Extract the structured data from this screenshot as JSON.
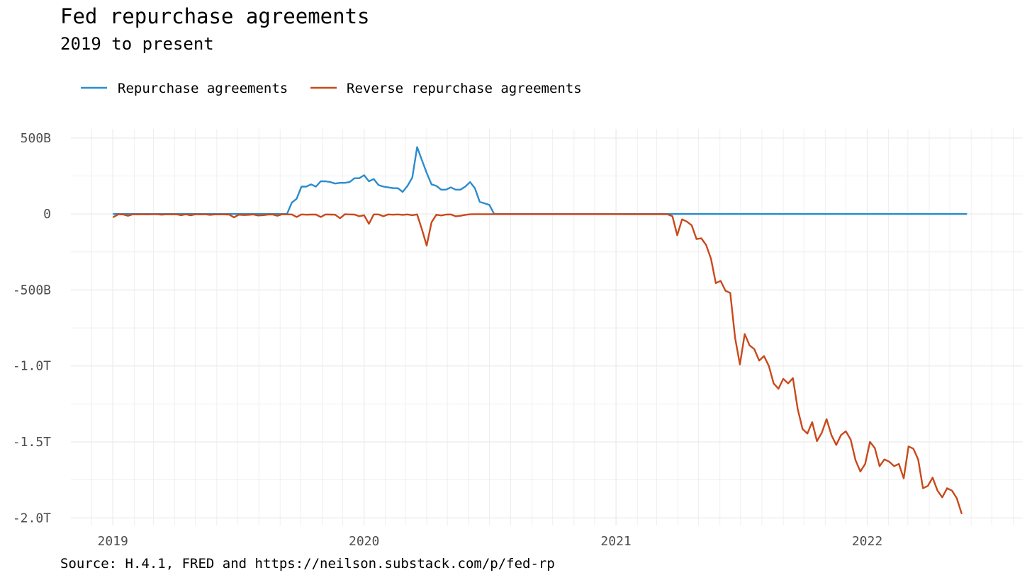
{
  "title": "Fed repurchase agreements",
  "subtitle": "2019 to present",
  "caption": "Source: H.4.1, FRED and https://neilson.substack.com/p/fed-rp",
  "colors": {
    "repurchase": "#2b8cce",
    "reverse": "#c9491b",
    "grid": "#ebebeb",
    "axis_text": "#4d4d4d"
  },
  "chart_data": {
    "type": "line",
    "x_axis": {
      "type": "date",
      "range": [
        "2018-11-01",
        "2022-08-15"
      ],
      "tick_labels": [
        "2019",
        "2020",
        "2021",
        "2022"
      ],
      "ticks": [
        "2019-01-01",
        "2020-01-01",
        "2021-01-01",
        "2022-01-01"
      ]
    },
    "y_axis": {
      "units": "USD billions",
      "range": [
        -2050,
        560
      ],
      "ticks": [
        500,
        0,
        -500,
        -1000,
        -1500,
        -2000
      ],
      "tick_labels": [
        "500B",
        "0",
        "-500B",
        "-1.0T",
        "-1.5T",
        "-2.0T"
      ]
    },
    "grid": true,
    "legend_position": "top-left",
    "series": [
      {
        "name": "Repurchase agreements",
        "color_key": "repurchase",
        "points": [
          [
            "2019-01-02",
            0
          ],
          [
            "2019-09-11",
            0
          ],
          [
            "2019-09-18",
            75
          ],
          [
            "2019-09-25",
            100
          ],
          [
            "2019-10-02",
            180
          ],
          [
            "2019-10-09",
            180
          ],
          [
            "2019-10-16",
            195
          ],
          [
            "2019-10-23",
            180
          ],
          [
            "2019-10-30",
            215
          ],
          [
            "2019-11-06",
            215
          ],
          [
            "2019-11-13",
            210
          ],
          [
            "2019-11-20",
            200
          ],
          [
            "2019-11-27",
            205
          ],
          [
            "2019-12-04",
            205
          ],
          [
            "2019-12-11",
            210
          ],
          [
            "2019-12-18",
            235
          ],
          [
            "2019-12-25",
            235
          ],
          [
            "2020-01-01",
            255
          ],
          [
            "2020-01-08",
            215
          ],
          [
            "2020-01-15",
            230
          ],
          [
            "2020-01-22",
            190
          ],
          [
            "2020-01-29",
            180
          ],
          [
            "2020-02-05",
            175
          ],
          [
            "2020-02-12",
            170
          ],
          [
            "2020-02-19",
            170
          ],
          [
            "2020-02-26",
            145
          ],
          [
            "2020-03-04",
            185
          ],
          [
            "2020-03-11",
            240
          ],
          [
            "2020-03-18",
            440
          ],
          [
            "2020-03-25",
            355
          ],
          [
            "2020-04-01",
            270
          ],
          [
            "2020-04-08",
            195
          ],
          [
            "2020-04-15",
            185
          ],
          [
            "2020-04-22",
            160
          ],
          [
            "2020-04-29",
            160
          ],
          [
            "2020-05-06",
            175
          ],
          [
            "2020-05-13",
            160
          ],
          [
            "2020-05-20",
            160
          ],
          [
            "2020-05-27",
            180
          ],
          [
            "2020-06-03",
            210
          ],
          [
            "2020-06-10",
            170
          ],
          [
            "2020-06-17",
            80
          ],
          [
            "2020-06-24",
            70
          ],
          [
            "2020-07-01",
            60
          ],
          [
            "2020-07-08",
            0
          ],
          [
            "2022-05-25",
            0
          ]
        ]
      },
      {
        "name": "Reverse repurchase agreements",
        "color_key": "reverse",
        "points": [
          [
            "2019-01-02",
            -20
          ],
          [
            "2019-01-09",
            -2
          ],
          [
            "2019-01-16",
            -3
          ],
          [
            "2019-01-23",
            -12
          ],
          [
            "2019-01-30",
            -2
          ],
          [
            "2019-02-06",
            -3
          ],
          [
            "2019-02-13",
            -2
          ],
          [
            "2019-02-20",
            -3
          ],
          [
            "2019-02-27",
            -2
          ],
          [
            "2019-03-06",
            -2
          ],
          [
            "2019-03-13",
            -5
          ],
          [
            "2019-03-20",
            -2
          ],
          [
            "2019-03-27",
            -3
          ],
          [
            "2019-04-03",
            -2
          ],
          [
            "2019-04-10",
            -8
          ],
          [
            "2019-04-17",
            -2
          ],
          [
            "2019-04-24",
            -9
          ],
          [
            "2019-05-01",
            -2
          ],
          [
            "2019-05-08",
            -3
          ],
          [
            "2019-05-15",
            -2
          ],
          [
            "2019-05-22",
            -6
          ],
          [
            "2019-05-29",
            -3
          ],
          [
            "2019-06-05",
            -3
          ],
          [
            "2019-06-12",
            -3
          ],
          [
            "2019-06-19",
            -4
          ],
          [
            "2019-06-26",
            -22
          ],
          [
            "2019-07-03",
            -5
          ],
          [
            "2019-07-10",
            -7
          ],
          [
            "2019-07-17",
            -6
          ],
          [
            "2019-07-24",
            -3
          ],
          [
            "2019-07-31",
            -10
          ],
          [
            "2019-08-07",
            -8
          ],
          [
            "2019-08-14",
            -4
          ],
          [
            "2019-08-21",
            -3
          ],
          [
            "2019-08-28",
            -12
          ],
          [
            "2019-09-04",
            -2
          ],
          [
            "2019-09-11",
            -3
          ],
          [
            "2019-09-18",
            -3
          ],
          [
            "2019-09-25",
            -20
          ],
          [
            "2019-10-02",
            -3
          ],
          [
            "2019-10-09",
            -5
          ],
          [
            "2019-10-16",
            -4
          ],
          [
            "2019-10-23",
            -4
          ],
          [
            "2019-10-30",
            -20
          ],
          [
            "2019-11-06",
            -3
          ],
          [
            "2019-11-13",
            -4
          ],
          [
            "2019-11-20",
            -5
          ],
          [
            "2019-11-27",
            -28
          ],
          [
            "2019-12-04",
            -2
          ],
          [
            "2019-12-11",
            -3
          ],
          [
            "2019-12-18",
            -4
          ],
          [
            "2019-12-25",
            -15
          ],
          [
            "2020-01-01",
            -8
          ],
          [
            "2020-01-08",
            -65
          ],
          [
            "2020-01-15",
            -3
          ],
          [
            "2020-01-22",
            -3
          ],
          [
            "2020-01-29",
            -15
          ],
          [
            "2020-02-05",
            -3
          ],
          [
            "2020-02-12",
            -5
          ],
          [
            "2020-02-19",
            -3
          ],
          [
            "2020-02-26",
            -6
          ],
          [
            "2020-03-04",
            -3
          ],
          [
            "2020-03-11",
            -8
          ],
          [
            "2020-03-18",
            -3
          ],
          [
            "2020-03-25",
            -100
          ],
          [
            "2020-04-01",
            -208
          ],
          [
            "2020-04-08",
            -55
          ],
          [
            "2020-04-15",
            -5
          ],
          [
            "2020-04-22",
            -10
          ],
          [
            "2020-04-29",
            -4
          ],
          [
            "2020-05-06",
            -3
          ],
          [
            "2020-05-13",
            -15
          ],
          [
            "2020-05-20",
            -12
          ],
          [
            "2020-05-27",
            -6
          ],
          [
            "2020-06-03",
            -2
          ],
          [
            "2020-06-10",
            -1
          ],
          [
            "2020-07-01",
            -1
          ],
          [
            "2020-12-31",
            -1
          ],
          [
            "2021-01-20",
            -2
          ],
          [
            "2021-03-10",
            -1
          ],
          [
            "2021-03-17",
            -2
          ],
          [
            "2021-03-24",
            -15
          ],
          [
            "2021-03-31",
            -140
          ],
          [
            "2021-04-07",
            -35
          ],
          [
            "2021-04-14",
            -50
          ],
          [
            "2021-04-21",
            -75
          ],
          [
            "2021-04-28",
            -165
          ],
          [
            "2021-05-05",
            -160
          ],
          [
            "2021-05-12",
            -205
          ],
          [
            "2021-05-19",
            -295
          ],
          [
            "2021-05-26",
            -455
          ],
          [
            "2021-06-02",
            -440
          ],
          [
            "2021-06-09",
            -505
          ],
          [
            "2021-06-16",
            -520
          ],
          [
            "2021-06-23",
            -815
          ],
          [
            "2021-06-30",
            -990
          ],
          [
            "2021-07-07",
            -790
          ],
          [
            "2021-07-14",
            -865
          ],
          [
            "2021-07-21",
            -890
          ],
          [
            "2021-07-28",
            -965
          ],
          [
            "2021-08-04",
            -935
          ],
          [
            "2021-08-11",
            -1000
          ],
          [
            "2021-08-18",
            -1115
          ],
          [
            "2021-08-25",
            -1150
          ],
          [
            "2021-09-01",
            -1085
          ],
          [
            "2021-09-08",
            -1115
          ],
          [
            "2021-09-15",
            -1080
          ],
          [
            "2021-09-22",
            -1285
          ],
          [
            "2021-09-29",
            -1415
          ],
          [
            "2021-10-06",
            -1445
          ],
          [
            "2021-10-13",
            -1370
          ],
          [
            "2021-10-20",
            -1495
          ],
          [
            "2021-10-27",
            -1440
          ],
          [
            "2021-11-03",
            -1350
          ],
          [
            "2021-11-10",
            -1455
          ],
          [
            "2021-11-17",
            -1520
          ],
          [
            "2021-11-24",
            -1455
          ],
          [
            "2021-12-01",
            -1430
          ],
          [
            "2021-12-08",
            -1485
          ],
          [
            "2021-12-15",
            -1620
          ],
          [
            "2021-12-22",
            -1695
          ],
          [
            "2021-12-29",
            -1645
          ],
          [
            "2022-01-05",
            -1500
          ],
          [
            "2022-01-12",
            -1540
          ],
          [
            "2022-01-19",
            -1660
          ],
          [
            "2022-01-26",
            -1615
          ],
          [
            "2022-02-02",
            -1630
          ],
          [
            "2022-02-09",
            -1660
          ],
          [
            "2022-02-16",
            -1645
          ],
          [
            "2022-02-23",
            -1740
          ],
          [
            "2022-03-02",
            -1530
          ],
          [
            "2022-03-09",
            -1545
          ],
          [
            "2022-03-16",
            -1615
          ],
          [
            "2022-03-23",
            -1805
          ],
          [
            "2022-03-30",
            -1790
          ],
          [
            "2022-04-06",
            -1735
          ],
          [
            "2022-04-13",
            -1820
          ],
          [
            "2022-04-20",
            -1865
          ],
          [
            "2022-04-27",
            -1805
          ],
          [
            "2022-05-04",
            -1820
          ],
          [
            "2022-05-11",
            -1870
          ],
          [
            "2022-05-18",
            -1970
          ]
        ]
      }
    ]
  }
}
